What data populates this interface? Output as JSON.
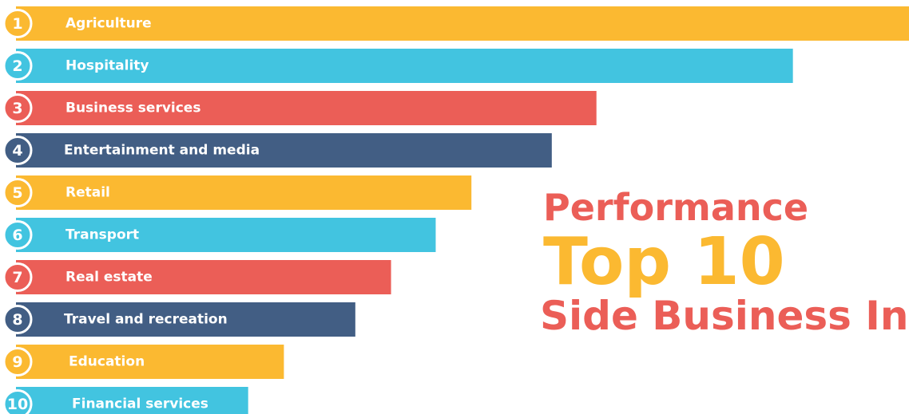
{
  "chart_data": {
    "type": "bar",
    "orientation": "horizontal",
    "title": [
      "Performance",
      "Top 10",
      "Side Business Inc"
    ],
    "title_colors": [
      "#eb5e57",
      "#fbb931",
      "#eb5e57"
    ],
    "ranks": [
      1,
      2,
      3,
      4,
      5,
      6,
      7,
      8,
      9,
      10
    ],
    "categories": [
      "Agriculture",
      "Hospitality",
      "Business services",
      "Entertainment and media",
      "Retail",
      "Transport",
      "Real estate",
      "Travel and recreation",
      "Education",
      "Financial services"
    ],
    "values": [
      100,
      87,
      65,
      60,
      51,
      47,
      42,
      38,
      30,
      26
    ],
    "colors": [
      "#fbb931",
      "#42c4e0",
      "#eb5e57",
      "#425e84",
      "#fbb931",
      "#42c4e0",
      "#eb5e57",
      "#425e84",
      "#fbb931",
      "#42c4e0"
    ],
    "xlim": [
      0,
      100
    ]
  }
}
